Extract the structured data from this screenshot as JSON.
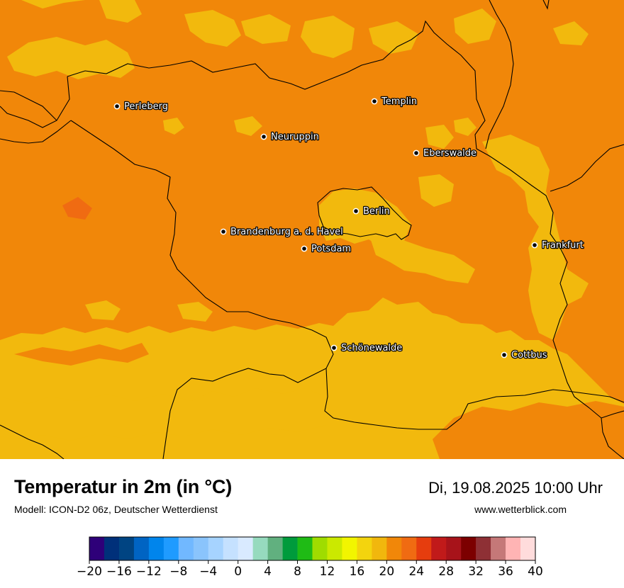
{
  "map": {
    "background_color": "#f18709",
    "warm_region_color": "#f2b90d",
    "border_color": "#000000",
    "cities": [
      {
        "name": "Perleberg"
      },
      {
        "name": "Templin"
      },
      {
        "name": "Neuruppin"
      },
      {
        "name": "Eberswalde"
      },
      {
        "name": "Berlin"
      },
      {
        "name": "Brandenburg a. d. Havel"
      },
      {
        "name": "Potsdam"
      },
      {
        "name": "Frankfurt"
      },
      {
        "name": "Schönewalde"
      },
      {
        "name": "Cottbus"
      }
    ]
  },
  "info": {
    "title": "Temperatur in 2m (in °C)",
    "model": "Modell: ICON-D2 06z, Deutscher Wetterdienst",
    "datetime": "Di, 19.08.2025 10:00 Uhr",
    "website": "www.wetterblick.com"
  },
  "colorbar": {
    "min": -20,
    "max": 40,
    "step": 2,
    "tick_labels": [
      "−20",
      "−16",
      "−12",
      "−8",
      "−4",
      "0",
      "4",
      "8",
      "12",
      "16",
      "20",
      "24",
      "28",
      "32",
      "36",
      "40"
    ],
    "colors": [
      "#2e0079",
      "#00307a",
      "#004482",
      "#0064c3",
      "#0085ec",
      "#1f9bff",
      "#71b8ff",
      "#8ac4fc",
      "#a6d3ff",
      "#c5e1ff",
      "#d9eaff",
      "#96dabe",
      "#61b07f",
      "#009b3c",
      "#1fbb15",
      "#9fdc00",
      "#cbe900",
      "#f2f500",
      "#f3d40e",
      "#f1b70d",
      "#f18709",
      "#f06b12",
      "#e63d0e",
      "#c11a1a",
      "#a7131a",
      "#7c0000",
      "#8e3035",
      "#c57878",
      "#ffb4b4",
      "#ffdcdc"
    ]
  }
}
